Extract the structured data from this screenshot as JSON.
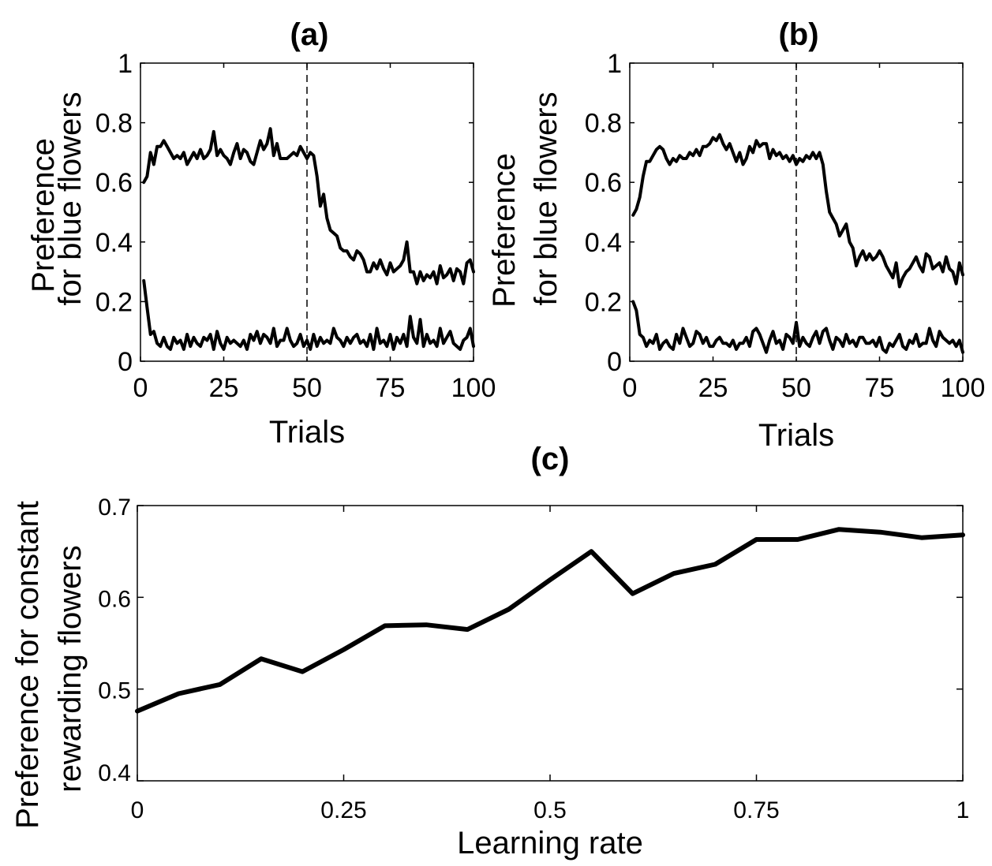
{
  "chart_data": [
    {
      "type": "line",
      "panel": "a",
      "title": "(a)",
      "xlabel": "Trials",
      "ylabel": [
        "Preference",
        "for blue flowers"
      ],
      "xlim": [
        0,
        100
      ],
      "ylim": [
        0,
        1
      ],
      "xticks": [
        0,
        25,
        50,
        75,
        100
      ],
      "xtick_labels": [
        "0",
        "25",
        "50",
        "75",
        "100"
      ],
      "yticks": [
        0,
        0.2,
        0.4,
        0.6,
        0.8,
        1
      ],
      "ytick_labels": [
        "0",
        "0.2",
        "0.4",
        "0.6",
        "0.8",
        "1"
      ],
      "grid": false,
      "annotations": [
        {
          "type": "vertical-dashed-line",
          "x": 50
        }
      ],
      "series": [
        {
          "values": [
            0.6,
            0.62,
            0.7,
            0.66,
            0.72,
            0.72,
            0.74,
            0.72,
            0.7,
            0.68,
            0.69,
            0.68,
            0.7,
            0.66,
            0.68,
            0.7,
            0.68,
            0.71,
            0.68,
            0.69,
            0.71,
            0.77,
            0.69,
            0.71,
            0.69,
            0.68,
            0.66,
            0.7,
            0.73,
            0.68,
            0.71,
            0.7,
            0.67,
            0.66,
            0.7,
            0.74,
            0.71,
            0.73,
            0.78,
            0.69,
            0.73,
            0.68,
            0.68,
            0.68,
            0.69,
            0.7,
            0.69,
            0.72,
            0.7,
            0.68,
            0.7,
            0.69,
            0.62,
            0.52,
            0.56,
            0.48,
            0.44,
            0.43,
            0.42,
            0.38,
            0.37,
            0.37,
            0.35,
            0.34,
            0.37,
            0.36,
            0.34,
            0.3,
            0.3,
            0.33,
            0.31,
            0.34,
            0.31,
            0.29,
            0.33,
            0.3,
            0.31,
            0.32,
            0.34,
            0.4,
            0.3,
            0.3,
            0.26,
            0.3,
            0.27,
            0.29,
            0.28,
            0.3,
            0.26,
            0.32,
            0.28,
            0.29,
            0.31,
            0.27,
            0.31,
            0.3,
            0.26,
            0.33,
            0.34,
            0.3
          ]
        },
        {
          "values": [
            0.27,
            0.18,
            0.09,
            0.1,
            0.06,
            0.05,
            0.08,
            0.05,
            0.04,
            0.08,
            0.06,
            0.07,
            0.04,
            0.09,
            0.05,
            0.08,
            0.06,
            0.05,
            0.08,
            0.07,
            0.09,
            0.04,
            0.1,
            0.06,
            0.04,
            0.08,
            0.06,
            0.07,
            0.06,
            0.05,
            0.07,
            0.04,
            0.09,
            0.07,
            0.1,
            0.06,
            0.09,
            0.08,
            0.06,
            0.11,
            0.05,
            0.07,
            0.07,
            0.11,
            0.07,
            0.05,
            0.06,
            0.09,
            0.05,
            0.07,
            0.04,
            0.09,
            0.05,
            0.08,
            0.06,
            0.07,
            0.06,
            0.11,
            0.08,
            0.07,
            0.05,
            0.08,
            0.06,
            0.08,
            0.09,
            0.06,
            0.07,
            0.05,
            0.09,
            0.04,
            0.11,
            0.06,
            0.07,
            0.05,
            0.09,
            0.04,
            0.08,
            0.06,
            0.09,
            0.05,
            0.15,
            0.08,
            0.06,
            0.14,
            0.05,
            0.09,
            0.06,
            0.07,
            0.05,
            0.11,
            0.06,
            0.08,
            0.1,
            0.06,
            0.05,
            0.04,
            0.07,
            0.08,
            0.11,
            0.05
          ]
        }
      ]
    },
    {
      "type": "line",
      "panel": "b",
      "title": "(b)",
      "xlabel": "Trials",
      "ylabel": [
        "Preference",
        "for blue flowers"
      ],
      "xlim": [
        0,
        100
      ],
      "ylim": [
        0,
        1
      ],
      "xticks": [
        0,
        25,
        50,
        75,
        100
      ],
      "xtick_labels": [
        "0",
        "25",
        "50",
        "75",
        "100"
      ],
      "yticks": [
        0,
        0.2,
        0.4,
        0.6,
        0.8,
        1
      ],
      "ytick_labels": [
        "0",
        "0.2",
        "0.4",
        "0.6",
        "0.8",
        "1"
      ],
      "grid": false,
      "annotations": [
        {
          "type": "vertical-dashed-line",
          "x": 50
        }
      ],
      "series": [
        {
          "values": [
            0.49,
            0.51,
            0.55,
            0.62,
            0.67,
            0.67,
            0.69,
            0.71,
            0.72,
            0.71,
            0.68,
            0.66,
            0.68,
            0.67,
            0.69,
            0.68,
            0.68,
            0.7,
            0.69,
            0.71,
            0.69,
            0.72,
            0.72,
            0.73,
            0.75,
            0.74,
            0.76,
            0.73,
            0.71,
            0.73,
            0.7,
            0.67,
            0.7,
            0.66,
            0.68,
            0.72,
            0.7,
            0.74,
            0.72,
            0.73,
            0.73,
            0.68,
            0.71,
            0.69,
            0.7,
            0.68,
            0.69,
            0.67,
            0.69,
            0.66,
            0.68,
            0.67,
            0.69,
            0.68,
            0.7,
            0.68,
            0.7,
            0.66,
            0.57,
            0.5,
            0.48,
            0.46,
            0.42,
            0.44,
            0.46,
            0.4,
            0.38,
            0.32,
            0.35,
            0.37,
            0.34,
            0.36,
            0.34,
            0.35,
            0.37,
            0.35,
            0.32,
            0.3,
            0.28,
            0.33,
            0.25,
            0.28,
            0.3,
            0.31,
            0.33,
            0.35,
            0.32,
            0.3,
            0.36,
            0.35,
            0.31,
            0.32,
            0.33,
            0.3,
            0.35,
            0.31,
            0.3,
            0.26,
            0.33,
            0.29
          ]
        },
        {
          "values": [
            0.2,
            0.17,
            0.09,
            0.08,
            0.05,
            0.07,
            0.06,
            0.09,
            0.04,
            0.06,
            0.07,
            0.05,
            0.04,
            0.09,
            0.06,
            0.11,
            0.08,
            0.05,
            0.06,
            0.1,
            0.09,
            0.06,
            0.08,
            0.05,
            0.05,
            0.07,
            0.08,
            0.06,
            0.06,
            0.05,
            0.07,
            0.04,
            0.06,
            0.06,
            0.08,
            0.05,
            0.1,
            0.11,
            0.09,
            0.06,
            0.03,
            0.07,
            0.1,
            0.06,
            0.07,
            0.04,
            0.09,
            0.08,
            0.06,
            0.13,
            0.05,
            0.08,
            0.06,
            0.05,
            0.08,
            0.1,
            0.06,
            0.1,
            0.11,
            0.07,
            0.04,
            0.08,
            0.07,
            0.05,
            0.09,
            0.06,
            0.07,
            0.05,
            0.08,
            0.08,
            0.06,
            0.06,
            0.07,
            0.05,
            0.08,
            0.04,
            0.03,
            0.06,
            0.05,
            0.07,
            0.09,
            0.05,
            0.04,
            0.07,
            0.06,
            0.09,
            0.05,
            0.06,
            0.06,
            0.11,
            0.07,
            0.05,
            0.1,
            0.08,
            0.07,
            0.06,
            0.07,
            0.05,
            0.07,
            0.03
          ]
        }
      ]
    },
    {
      "type": "line",
      "panel": "c",
      "title": "(c)",
      "xlabel": "Learning rate",
      "ylabel": [
        "Preference for constant",
        "rewarding flowers"
      ],
      "xlim": [
        0,
        1
      ],
      "ylim": [
        0.4,
        0.7
      ],
      "xticks": [
        0,
        0.25,
        0.5,
        0.75,
        1
      ],
      "xtick_labels": [
        "0",
        "0.25",
        "0.5",
        "0.75",
        "1"
      ],
      "yticks": [
        0.4,
        0.5,
        0.6,
        0.7
      ],
      "ytick_labels": [
        "0.4",
        "0.5",
        "0.6",
        "0.7"
      ],
      "grid": false,
      "series": [
        {
          "x": [
            0,
            0.05,
            0.1,
            0.15,
            0.2,
            0.25,
            0.3,
            0.35,
            0.4,
            0.45,
            0.5,
            0.55,
            0.6,
            0.65,
            0.7,
            0.75,
            0.8,
            0.85,
            0.9,
            0.95,
            1.0
          ],
          "values": [
            0.476,
            0.495,
            0.505,
            0.533,
            0.519,
            0.543,
            0.569,
            0.57,
            0.565,
            0.587,
            0.619,
            0.65,
            0.604,
            0.626,
            0.636,
            0.663,
            0.663,
            0.674,
            0.671,
            0.665,
            0.668
          ]
        }
      ]
    }
  ]
}
